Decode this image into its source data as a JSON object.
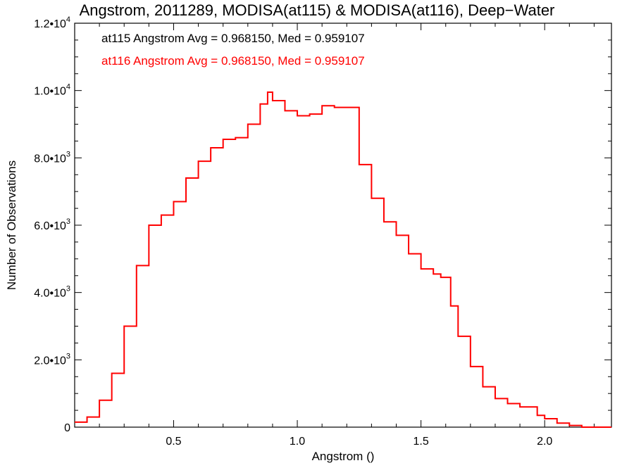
{
  "chart_data": {
    "type": "line",
    "step": true,
    "title": "Angstrom, 2011289, MODISA(at115) & MODISA(at116), Deep−Water",
    "xlabel": "Angstrom ()",
    "ylabel": "Number of Observations",
    "xlim": [
      0.1,
      2.27
    ],
    "ylim": [
      0,
      12000
    ],
    "x_ticks": [
      {
        "value": 0.5,
        "label": "0.5"
      },
      {
        "value": 1.0,
        "label": "1.0"
      },
      {
        "value": 1.5,
        "label": "1.5"
      },
      {
        "value": 2.0,
        "label": "2.0"
      }
    ],
    "y_ticks": [
      {
        "value": 0,
        "mantissa": "0",
        "exp": ""
      },
      {
        "value": 2000,
        "mantissa": "2.0•10",
        "exp": "3"
      },
      {
        "value": 4000,
        "mantissa": "4.0•10",
        "exp": "3"
      },
      {
        "value": 6000,
        "mantissa": "6.0•10",
        "exp": "3"
      },
      {
        "value": 8000,
        "mantissa": "8.0•10",
        "exp": "3"
      },
      {
        "value": 10000,
        "mantissa": "1.0•10",
        "exp": "4"
      },
      {
        "value": 12000,
        "mantissa": "1.2•10",
        "exp": "4"
      }
    ],
    "grid": false,
    "annotations": [
      {
        "text": "at115 Angstrom Avg = 0.968150, Med = 0.959107",
        "color": "#000000"
      },
      {
        "text": "at116 Angstrom Avg = 0.968150, Med = 0.959107",
        "color": "#ff0000"
      }
    ],
    "series": [
      {
        "color": "#ff0000",
        "x": [
          0.1,
          0.15,
          0.2,
          0.25,
          0.3,
          0.35,
          0.4,
          0.45,
          0.5,
          0.55,
          0.6,
          0.65,
          0.7,
          0.75,
          0.8,
          0.85,
          0.88,
          0.9,
          0.95,
          1.0,
          1.05,
          1.1,
          1.15,
          1.2,
          1.25,
          1.3,
          1.35,
          1.4,
          1.45,
          1.5,
          1.55,
          1.58,
          1.62,
          1.65,
          1.7,
          1.75,
          1.8,
          1.85,
          1.9,
          1.93,
          1.97,
          2.0,
          2.05,
          2.1,
          2.15,
          2.2,
          2.25,
          2.27
        ],
        "y": [
          150,
          300,
          800,
          1600,
          3000,
          4800,
          6000,
          6300,
          6700,
          7400,
          7900,
          8300,
          8550,
          8600,
          9000,
          9600,
          9950,
          9700,
          9400,
          9250,
          9300,
          9550,
          9500,
          9500,
          7800,
          6800,
          6100,
          5700,
          5150,
          4700,
          4550,
          4450,
          3600,
          2700,
          1800,
          1200,
          850,
          700,
          600,
          600,
          350,
          250,
          120,
          50,
          0,
          0,
          0,
          0
        ]
      }
    ]
  }
}
